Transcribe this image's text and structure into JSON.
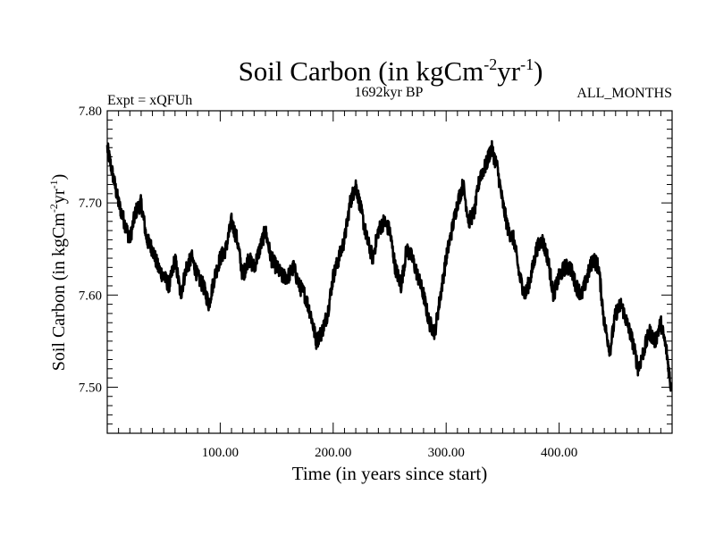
{
  "chart_data": {
    "type": "line",
    "title_main": "Soil Carbon (in kgCm",
    "title_sup1": "-2",
    "title_mid": "yr",
    "title_sup2": "-1",
    "title_end": ")",
    "expt_label": "Expt = xQFUh",
    "period_label": "1692kyr BP",
    "months_label": "ALL_MONTHS",
    "xlabel": "Time (in years since start)",
    "ylabel_main": "Soil Carbon (in kgCm",
    "ylabel_sup1": "-2",
    "ylabel_mid": "yr",
    "ylabel_sup2": "-1",
    "ylabel_end": ")",
    "xlim": [
      0,
      500
    ],
    "ylim": [
      7.45,
      7.8
    ],
    "xticks": [
      100,
      200,
      300,
      400
    ],
    "xtick_labels": [
      "100.00",
      "200.00",
      "300.00",
      "400.00"
    ],
    "yticks": [
      7.5,
      7.6,
      7.7,
      7.8
    ],
    "ytick_labels": [
      "7.50",
      "7.60",
      "7.70",
      "7.80"
    ],
    "series": [
      {
        "name": "Soil Carbon",
        "color": "#000000",
        "x": [
          0,
          5,
          10,
          15,
          20,
          25,
          30,
          35,
          40,
          45,
          50,
          55,
          60,
          65,
          70,
          75,
          80,
          85,
          90,
          95,
          100,
          105,
          110,
          115,
          120,
          125,
          130,
          135,
          140,
          145,
          150,
          155,
          160,
          165,
          170,
          175,
          180,
          185,
          190,
          195,
          200,
          205,
          210,
          215,
          220,
          225,
          230,
          235,
          240,
          245,
          250,
          255,
          260,
          265,
          270,
          275,
          280,
          285,
          290,
          295,
          300,
          305,
          310,
          315,
          320,
          325,
          330,
          335,
          340,
          345,
          350,
          355,
          360,
          365,
          370,
          375,
          380,
          385,
          390,
          395,
          400,
          405,
          410,
          415,
          420,
          425,
          430,
          435,
          440,
          445,
          450,
          455,
          460,
          465,
          470,
          475,
          480,
          485,
          490,
          495,
          499
        ],
        "y": [
          7.76,
          7.73,
          7.7,
          7.68,
          7.66,
          7.69,
          7.7,
          7.66,
          7.65,
          7.63,
          7.62,
          7.61,
          7.64,
          7.6,
          7.63,
          7.64,
          7.62,
          7.61,
          7.59,
          7.62,
          7.64,
          7.65,
          7.68,
          7.66,
          7.62,
          7.64,
          7.63,
          7.65,
          7.67,
          7.64,
          7.63,
          7.62,
          7.62,
          7.63,
          7.61,
          7.6,
          7.58,
          7.55,
          7.56,
          7.58,
          7.62,
          7.64,
          7.66,
          7.7,
          7.72,
          7.69,
          7.66,
          7.64,
          7.67,
          7.68,
          7.67,
          7.63,
          7.61,
          7.65,
          7.64,
          7.62,
          7.6,
          7.57,
          7.56,
          7.6,
          7.64,
          7.67,
          7.7,
          7.72,
          7.68,
          7.69,
          7.73,
          7.74,
          7.76,
          7.74,
          7.7,
          7.67,
          7.66,
          7.62,
          7.6,
          7.62,
          7.65,
          7.66,
          7.64,
          7.6,
          7.62,
          7.63,
          7.63,
          7.61,
          7.6,
          7.62,
          7.64,
          7.63,
          7.57,
          7.54,
          7.58,
          7.59,
          7.57,
          7.55,
          7.52,
          7.54,
          7.56,
          7.55,
          7.57,
          7.54,
          7.5
        ]
      }
    ]
  }
}
